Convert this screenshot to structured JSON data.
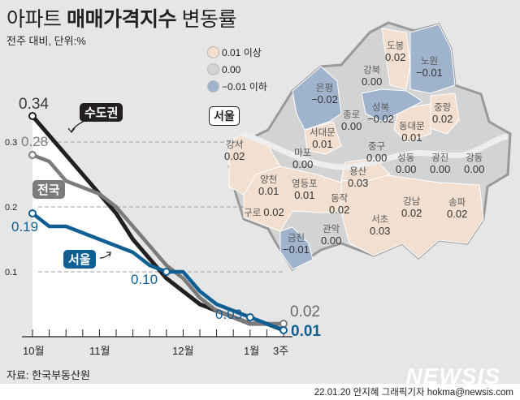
{
  "header": {
    "title_light": "아파트",
    "title_bold": "매매가격지수",
    "title_end": "변동률",
    "subtitle": "전주 대비, 단위:%"
  },
  "legend": {
    "items": [
      {
        "label": "0.01 이상",
        "color": "#f2dfcf"
      },
      {
        "label": "0.00",
        "color": "#d3d3d3"
      },
      {
        "label": "−0.01 이하",
        "color": "#9fb4cc"
      }
    ]
  },
  "chart_data": {
    "type": "line",
    "title": "아파트 매매가격지수 변동률",
    "subtitle": "전주 대비, 단위:%",
    "xlabel": "",
    "ylabel": "%",
    "ylim": [
      0,
      0.35
    ],
    "yticks": [
      "0.1",
      "0.2",
      "0.3"
    ],
    "x_tick_labels": [
      "10월",
      "11월",
      "12월",
      "1월",
      "3주"
    ],
    "x": [
      "10월1주",
      "10월2주",
      "10월3주",
      "10월4주",
      "11월1주",
      "11월2주",
      "11월3주",
      "11월4주",
      "11월5주",
      "12월1주",
      "12월2주",
      "12월3주",
      "12월4주",
      "1월1주",
      "1월2주",
      "1월3주"
    ],
    "grid": "dashed horizontal at 0.1, 0.2, 0.3",
    "series": [
      {
        "name": "수도권",
        "color": "#231f20",
        "values": [
          0.34,
          0.31,
          0.28,
          0.25,
          0.22,
          0.19,
          0.15,
          0.12,
          0.09,
          0.07,
          0.05,
          0.04,
          0.03,
          0.02,
          0.02,
          0.01
        ],
        "start_label": "0.34",
        "end_label": ""
      },
      {
        "name": "전국",
        "color": "#7b7b7b",
        "values": [
          0.28,
          0.27,
          0.24,
          0.23,
          0.22,
          0.2,
          0.17,
          0.14,
          0.11,
          0.09,
          0.06,
          0.04,
          0.03,
          0.02,
          0.02,
          0.02
        ],
        "start_label": "0.28",
        "end_label": "0.02"
      },
      {
        "name": "서울",
        "color": "#0f5f93",
        "values": [
          0.19,
          0.17,
          0.17,
          0.16,
          0.15,
          0.14,
          0.13,
          0.11,
          0.1,
          0.1,
          0.07,
          0.05,
          0.04,
          0.03,
          0.02,
          0.01
        ],
        "start_label": "0.19",
        "end_label": "0.01",
        "annotations": [
          "0.10",
          "0.03"
        ]
      }
    ],
    "legend_position": "inline tags"
  },
  "map": {
    "title": "서울",
    "districts": [
      {
        "name": "도봉",
        "value": "0.02",
        "class": "up"
      },
      {
        "name": "노원",
        "value": "−0.01",
        "class": "down"
      },
      {
        "name": "강북",
        "value": "0.00",
        "class": "flat"
      },
      {
        "name": "은평",
        "value": "−0.02",
        "class": "down"
      },
      {
        "name": "성북",
        "value": "−0.02",
        "class": "down"
      },
      {
        "name": "종로",
        "value": "0.00",
        "class": "flat"
      },
      {
        "name": "중랑",
        "value": "0.02",
        "class": "up"
      },
      {
        "name": "서대문",
        "value": "0.01",
        "class": "up"
      },
      {
        "name": "동대문",
        "value": "0.01",
        "class": "up"
      },
      {
        "name": "강서",
        "value": "0.02",
        "class": "up"
      },
      {
        "name": "마포",
        "value": "0.00",
        "class": "flat"
      },
      {
        "name": "중구",
        "value": "0.00",
        "class": "flat"
      },
      {
        "name": "성동",
        "value": "0.00",
        "class": "flat"
      },
      {
        "name": "광진",
        "value": "0.00",
        "class": "flat"
      },
      {
        "name": "강동",
        "value": "0.00",
        "class": "flat"
      },
      {
        "name": "양천",
        "value": "0.01",
        "class": "up"
      },
      {
        "name": "영등포",
        "value": "0.01",
        "class": "up"
      },
      {
        "name": "용산",
        "value": "0.03",
        "class": "up"
      },
      {
        "name": "동작",
        "value": "0.02",
        "class": "up"
      },
      {
        "name": "구로",
        "value": "0.02",
        "class": "up"
      },
      {
        "name": "강남",
        "value": "0.02",
        "class": "up"
      },
      {
        "name": "송파",
        "value": "0.02",
        "class": "up"
      },
      {
        "name": "서초",
        "value": "0.03",
        "class": "up"
      },
      {
        "name": "관악",
        "value": "0.00",
        "class": "flat"
      },
      {
        "name": "금천",
        "value": "−0.01",
        "class": "down"
      }
    ]
  },
  "footer": {
    "source": "자료: 한국부동산원",
    "credit": "22.01.20 안지혜 그래픽기자 hokma@newsis.com",
    "brand": "NEWSIS"
  }
}
